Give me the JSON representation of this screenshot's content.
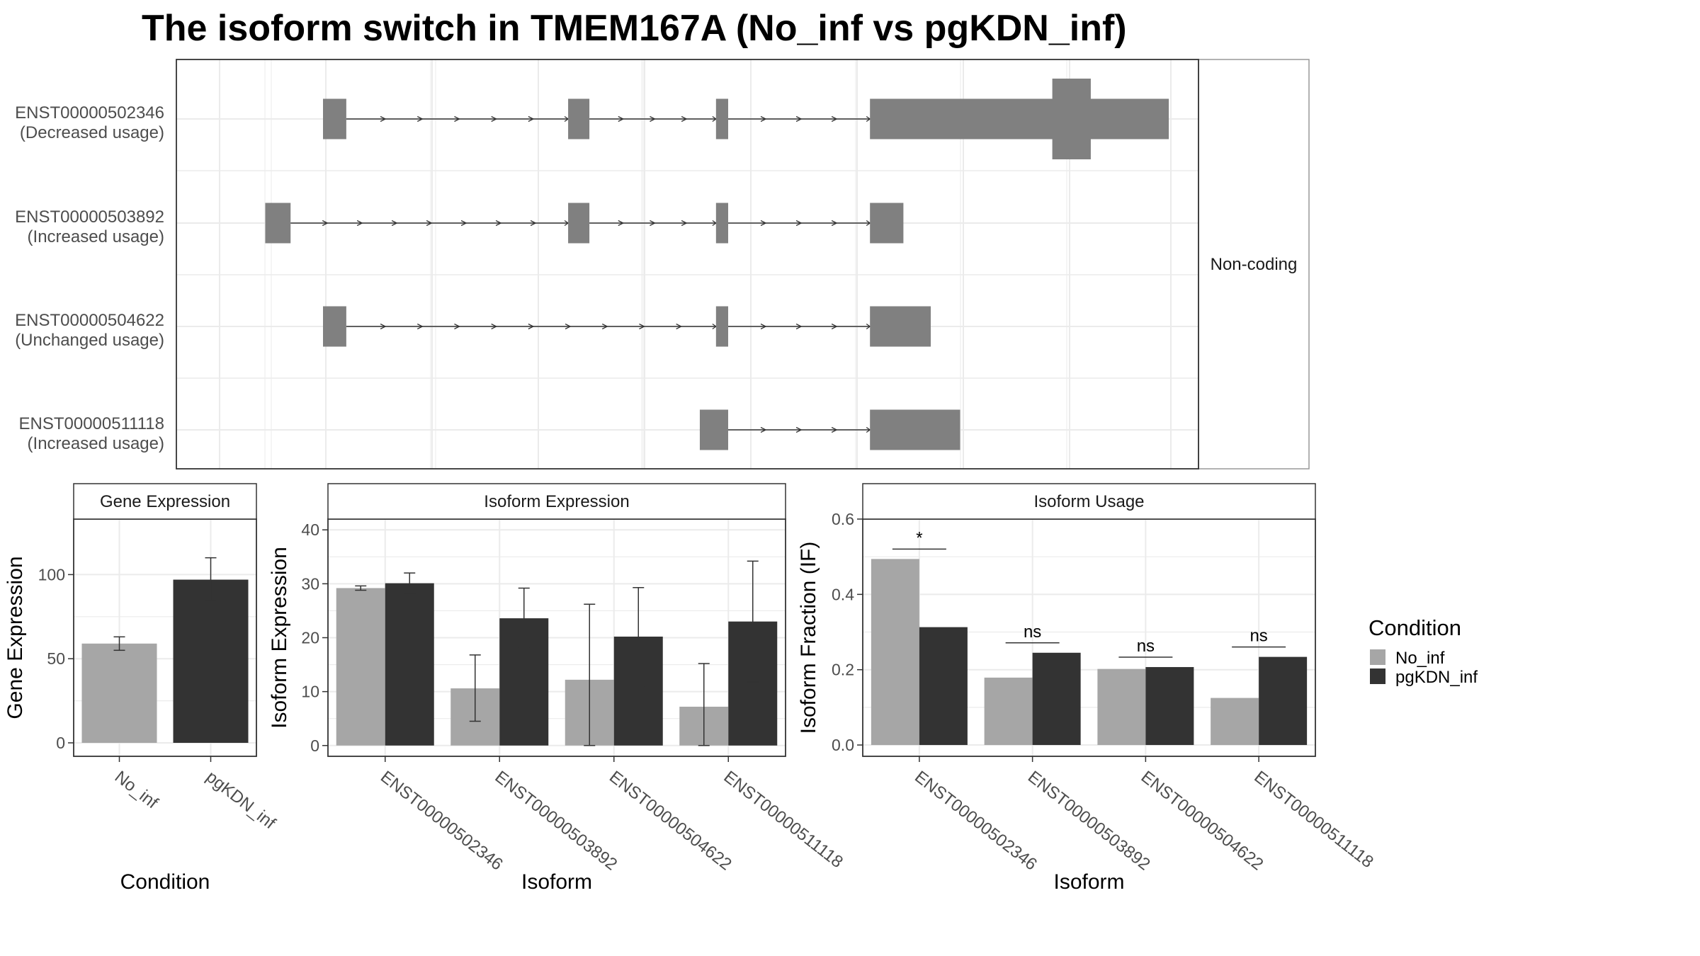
{
  "title": "The isoform switch in TMEM167A (No_inf vs pgKDN_inf)",
  "colors": {
    "no_inf": "#a6a6a6",
    "pgkdn_inf": "#333333",
    "exon": "#808080",
    "grid": "#ebebeb",
    "frame": "#333333"
  },
  "legend": {
    "title": "Condition",
    "items": [
      "No_inf",
      "pgKDN_inf"
    ]
  },
  "chart_data": [
    {
      "type": "transcript-structure",
      "strip": "Non-coding",
      "x_range": [
        0,
        100
      ],
      "transcripts": [
        {
          "id": "ENST00000502346",
          "note": "(Decreased usage)",
          "exons": [
            [
              10,
              12.3
            ],
            [
              34.2,
              36.3
            ],
            [
              48.8,
              50
            ],
            [
              64,
              93.5
            ]
          ],
          "tall_block": [
            82,
            85.8
          ],
          "intron_arrows": [
            [
              12.3,
              34.2,
              5
            ],
            [
              36.3,
              48.8,
              3
            ],
            [
              50,
              64,
              3
            ]
          ]
        },
        {
          "id": "ENST00000503892",
          "note": "(Increased usage)",
          "exons": [
            [
              4.3,
              6.8
            ],
            [
              34.2,
              36.3
            ],
            [
              48.8,
              50
            ],
            [
              64,
              67.3
            ]
          ],
          "intron_arrows": [
            [
              6.8,
              34.2,
              7
            ],
            [
              36.3,
              48.8,
              3
            ],
            [
              50,
              64,
              3
            ]
          ]
        },
        {
          "id": "ENST00000504622",
          "note": "(Unchanged usage)",
          "exons": [
            [
              10,
              12.3
            ],
            [
              48.8,
              50
            ],
            [
              64,
              70
            ]
          ],
          "intron_arrows": [
            [
              12.3,
              48.8,
              9
            ],
            [
              50,
              64,
              3
            ]
          ]
        },
        {
          "id": "ENST00000511118",
          "note": "(Increased usage)",
          "exons": [
            [
              47.2,
              50
            ],
            [
              64,
              72.9
            ]
          ],
          "intron_arrows": [
            [
              50,
              64,
              3
            ]
          ]
        }
      ]
    },
    {
      "type": "bar",
      "strip": "Gene Expression",
      "xlabel": "Condition",
      "ylabel": "Gene Expression",
      "ylim": [
        -8,
        133
      ],
      "yticks": [
        0,
        50,
        100
      ],
      "categories": [
        "No_inf",
        "pgKDN_inf"
      ],
      "values": [
        59,
        97
      ],
      "errors": [
        [
          55,
          63
        ],
        [
          84,
          110
        ]
      ]
    },
    {
      "type": "bar",
      "strip": "Isoform Expression",
      "xlabel": "Isoform",
      "ylabel": "Isoform Expression",
      "ylim": [
        -2,
        42
      ],
      "yticks": [
        0,
        10,
        20,
        30,
        40
      ],
      "categories": [
        "ENST00000502346",
        "ENST00000503892",
        "ENST00000504622",
        "ENST00000511118"
      ],
      "series": [
        {
          "name": "No_inf",
          "values": [
            29.2,
            10.6,
            12.2,
            7.2
          ],
          "errors": [
            [
              28.8,
              29.6
            ],
            [
              4.5,
              16.8
            ],
            [
              0,
              26.2
            ],
            [
              0,
              15.2
            ]
          ]
        },
        {
          "name": "pgKDN_inf",
          "values": [
            30.1,
            23.6,
            20.2,
            23
          ],
          "errors": [
            [
              28.2,
              32
            ],
            [
              18.2,
              29.2
            ],
            [
              10.9,
              29.3
            ],
            [
              11.8,
              34.2
            ]
          ]
        }
      ]
    },
    {
      "type": "bar",
      "strip": "Isoform Usage",
      "xlabel": "Isoform",
      "ylabel": "Isoform Fraction (IF)",
      "ylim": [
        -0.03,
        0.6
      ],
      "yticks": [
        "0.0",
        "0.2",
        "0.4",
        "0.6"
      ],
      "categories": [
        "ENST00000502346",
        "ENST00000503892",
        "ENST00000504622",
        "ENST00000511118"
      ],
      "series": [
        {
          "name": "No_inf",
          "values": [
            0.494,
            0.179,
            0.202,
            0.125
          ]
        },
        {
          "name": "pgKDN_inf",
          "values": [
            0.313,
            0.245,
            0.207,
            0.234
          ]
        }
      ],
      "significance": [
        "*",
        "ns",
        "ns",
        "ns"
      ]
    }
  ]
}
